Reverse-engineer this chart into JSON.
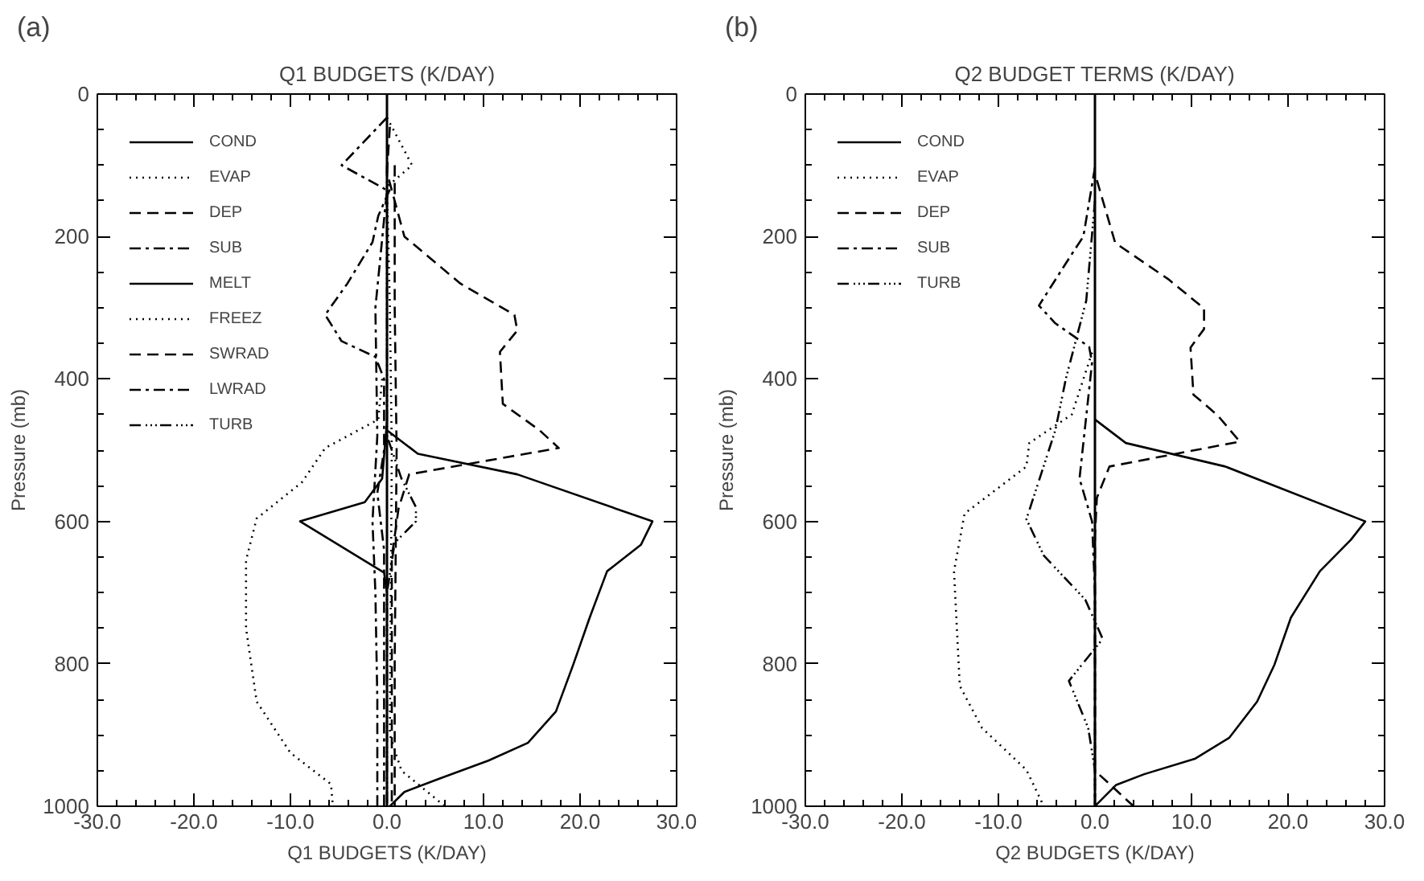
{
  "chart_data": [
    {
      "type": "line",
      "title": "Q1 BUDGETS (K/DAY)",
      "xlabel": "Q1 BUDGETS (K/DAY)",
      "ylabel": "Pressure (mb)",
      "annotations": [
        "(a)"
      ],
      "xlim": [
        -30,
        30
      ],
      "ylim": [
        1000,
        0
      ],
      "xticks": [
        {
          "value": -30,
          "label": "-30.0"
        },
        {
          "value": -20,
          "label": "-20.0"
        },
        {
          "value": -10,
          "label": "-10.0"
        },
        {
          "value": 0,
          "label": "0.0"
        },
        {
          "value": 10,
          "label": "10.0"
        },
        {
          "value": 20,
          "label": "20.0"
        },
        {
          "value": 30,
          "label": "30.0"
        }
      ],
      "yticks": [
        0,
        200,
        400,
        600,
        800,
        1000
      ],
      "grid": false,
      "legend": "top left",
      "ref_lines": [
        {
          "axis": "x",
          "value": 0,
          "color": "#000000",
          "line_style": "solid"
        }
      ],
      "series": [
        {
          "name": "COND",
          "color": "#000000",
          "line_style": "solid",
          "x": [
            0,
            3.2,
            13.5,
            27.5,
            26.3,
            22.8,
            21,
            19.3,
            17.5,
            14.6,
            10.5,
            5.3,
            1.8,
            0.3
          ],
          "values": [
            472,
            505,
            534,
            600,
            633,
            670,
            735,
            801,
            867,
            911,
            936,
            962,
            980,
            1000
          ]
        },
        {
          "name": "EVAP",
          "color": "#000000",
          "line_style": "dotted",
          "x": [
            -0.5,
            -0.9,
            -6.4,
            -8.8,
            -13.5,
            -14.6,
            -14.6,
            -13.5,
            -10,
            -5.8,
            -5.6
          ],
          "values": [
            400,
            457,
            497,
            545,
            596,
            655,
            750,
            853,
            925,
            969,
            1000
          ]
        },
        {
          "name": "DEP",
          "color": "#000000",
          "line_style": "dashed",
          "x": [
            0.3,
            0,
            1.8,
            7.6,
            13.2,
            13.5,
            11.7,
            12,
            15.8,
            17.8,
            2.3,
            1.2,
            0.5,
            0.5
          ],
          "values": [
            46,
            110,
            200,
            266,
            310,
            332,
            362,
            435,
            472,
            497,
            534,
            582,
            650,
            1000
          ]
        },
        {
          "name": "SUB",
          "color": "#000000",
          "line_style": "dashdot",
          "x": [
            0.3,
            -0.9,
            -1.5,
            -4.1,
            -6.4,
            -4.7,
            -1.2,
            -0.3,
            -0.3,
            -1,
            -0.3,
            -0.3
          ],
          "values": [
            134,
            171,
            208,
            266,
            310,
            347,
            369,
            400,
            500,
            560,
            640,
            1000
          ]
        },
        {
          "name": "MELT",
          "color": "#000000",
          "line_style": "solid",
          "x": [
            0,
            -0.5,
            -2.3,
            -9,
            -0.3,
            0
          ],
          "values": [
            460,
            540,
            573,
            600,
            672,
            700
          ]
        },
        {
          "name": "FREEZ",
          "color": "#000000",
          "line_style": "dotted",
          "x": [
            0,
            2.6,
            0,
            0.3,
            0.5,
            0.3,
            1.5,
            6
          ],
          "values": [
            33,
            100,
            130,
            300,
            500,
            900,
            950,
            1000
          ]
        },
        {
          "name": "SWRAD",
          "color": "#000000",
          "line_style": "dashed",
          "x": [
            0.8,
            0.8,
            1,
            0.8,
            0.8
          ],
          "values": [
            100,
            300,
            500,
            800,
            1000
          ]
        },
        {
          "name": "LWRAD",
          "color": "#000000",
          "line_style": "dashdot",
          "x": [
            0,
            -4.7,
            0,
            -1.2,
            -1,
            -1.5,
            -1.2,
            -1,
            -1
          ],
          "values": [
            33,
            100,
            135,
            300,
            480,
            600,
            700,
            850,
            1000
          ]
        },
        {
          "name": "TURB",
          "color": "#000000",
          "line_style": "dashdotdotdot",
          "x": [
            0,
            0,
            1.5,
            3,
            3,
            0.8,
            0,
            0
          ],
          "values": [
            100,
            480,
            540,
            580,
            600,
            630,
            700,
            1000
          ]
        }
      ]
    },
    {
      "type": "line",
      "title": "Q2 BUDGET TERMS (K/DAY)",
      "xlabel": "Q2 BUDGETS (K/DAY)",
      "ylabel": "Pressure (mb)",
      "annotations": [
        "(b)"
      ],
      "xlim": [
        -30,
        30
      ],
      "ylim": [
        1000,
        0
      ],
      "xticks": [
        {
          "value": -30,
          "label": "-30.0"
        },
        {
          "value": -20,
          "label": "-20.0"
        },
        {
          "value": -10,
          "label": "-10.0"
        },
        {
          "value": 0,
          "label": "0.0"
        },
        {
          "value": 10,
          "label": "10.0"
        },
        {
          "value": 20,
          "label": "20.0"
        },
        {
          "value": 30,
          "label": "30.0"
        }
      ],
      "yticks": [
        0,
        200,
        400,
        600,
        800,
        1000
      ],
      "grid": false,
      "legend": "top left",
      "ref_lines": [
        {
          "axis": "x",
          "value": 0,
          "color": "#000000",
          "line_style": "solid"
        }
      ],
      "series": [
        {
          "name": "COND",
          "color": "#000000",
          "line_style": "solid",
          "x": [
            0,
            3.2,
            13.5,
            28,
            26.5,
            23.3,
            20.3,
            18.6,
            16.8,
            13.9,
            10.4,
            5.1,
            2.2,
            0.5,
            0
          ],
          "values": [
            457,
            490,
            523,
            600,
            626,
            670,
            735,
            801,
            853,
            904,
            933,
            955,
            970,
            993,
            1000
          ]
        },
        {
          "name": "EVAP",
          "color": "#000000",
          "line_style": "dotted",
          "x": [
            -0.3,
            -2.4,
            -6.8,
            -7.1,
            -13.5,
            -14.6,
            -14,
            -11.7,
            -7.1,
            -5.3
          ],
          "values": [
            363,
            450,
            490,
            523,
            589,
            670,
            831,
            890,
            949,
            1000
          ]
        },
        {
          "name": "DEP",
          "color": "#000000",
          "line_style": "dashed",
          "x": [
            0.2,
            2.1,
            7.6,
            11.3,
            11.3,
            9.9,
            10.2,
            12.7,
            15,
            1.5,
            0.2,
            0,
            0,
            4
          ],
          "values": [
            121,
            209,
            260,
            301,
            330,
            356,
            422,
            451,
            488,
            523,
            567,
            620,
            950,
            1000
          ]
        },
        {
          "name": "SUB",
          "color": "#000000",
          "line_style": "dashdot",
          "x": [
            0,
            -1.2,
            -2.7,
            -5.8,
            -4.1,
            -0.6,
            -0.3,
            -1.6,
            -0.3,
            0,
            0
          ],
          "values": [
            103,
            200,
            231,
            297,
            322,
            355,
            377,
            540,
            600,
            700,
            1000
          ]
        },
        {
          "name": "TURB",
          "color": "#000000",
          "line_style": "dashdotdotdot",
          "x": [
            0,
            -0.9,
            -3,
            -4.1,
            -7.1,
            -5.3,
            -1,
            0.8,
            -2.7,
            -0.7,
            0,
            0
          ],
          "values": [
            150,
            290,
            399,
            472,
            597,
            648,
            710,
            765,
            824,
            890,
            949,
            1000
          ]
        }
      ]
    }
  ]
}
